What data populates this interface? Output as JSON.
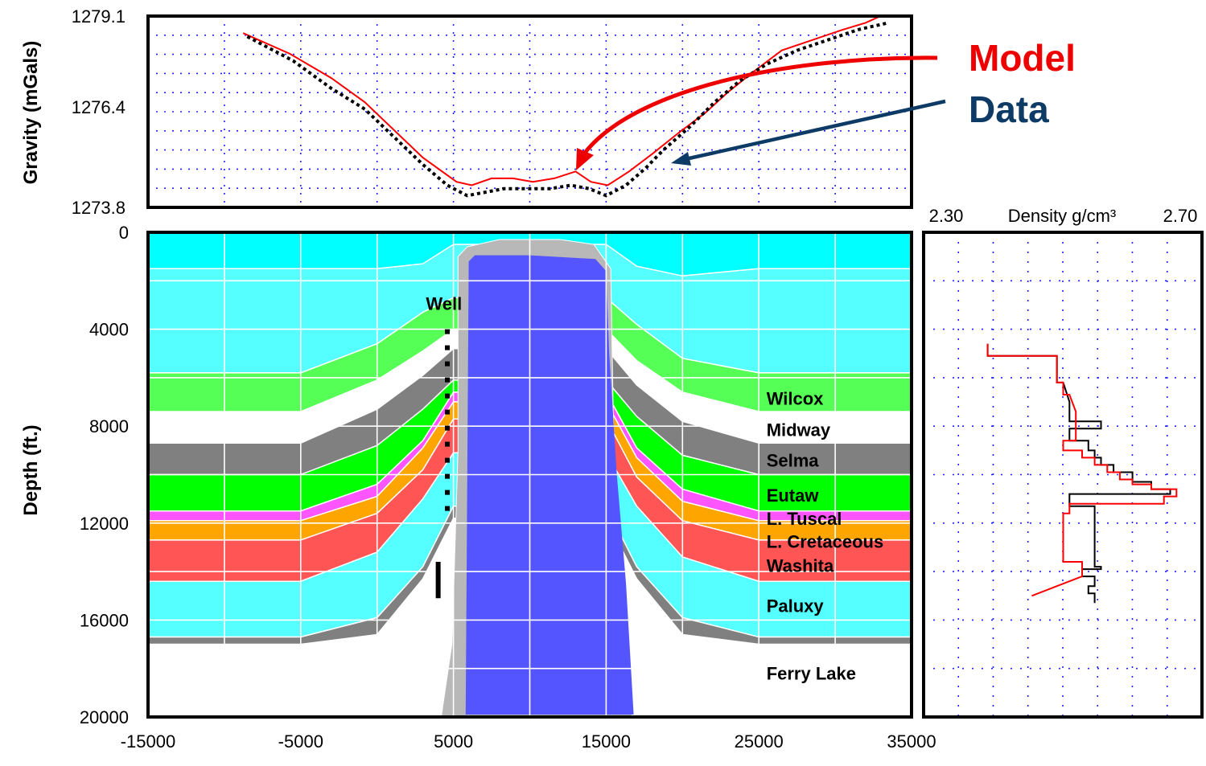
{
  "chart_data": [
    {
      "type": "line",
      "name": "gravity-profile",
      "ylabel": "Gravity (mGals)",
      "xlim": [
        -15000,
        35000
      ],
      "ylim": [
        1273.8,
        1279.1
      ],
      "yticks": [
        "1279.1",
        "1276.4",
        "1273.8"
      ],
      "grid": true,
      "legend": "right, with arrows",
      "series": [
        {
          "name": "Model",
          "color": "#ff0000",
          "style": "solid",
          "x": [
            -8770,
            -5700,
            -3000,
            -800,
            1100,
            3000,
            5200,
            6200,
            7500,
            8900,
            10200,
            11600,
            13000,
            14000,
            15100,
            16500,
            18000,
            19700,
            21500,
            23000,
            24700,
            26500,
            28500,
            30500,
            32000,
            33000
          ],
          "y": [
            1278.7,
            1278.1,
            1277.4,
            1276.7,
            1275.9,
            1275.1,
            1274.4,
            1274.3,
            1274.5,
            1274.5,
            1274.4,
            1274.5,
            1274.7,
            1274.4,
            1274.3,
            1274.7,
            1275.2,
            1275.8,
            1276.4,
            1277.0,
            1277.6,
            1278.2,
            1278.5,
            1278.8,
            1279.0,
            1279.2
          ]
        },
        {
          "name": "Data",
          "color": "#000000",
          "style": "dotted",
          "x": [
            -8500,
            -5500,
            -3000,
            -800,
            1100,
            3000,
            4600,
            5900,
            7100,
            8300,
            9800,
            11300,
            12700,
            13900,
            15000,
            16300,
            17600,
            18700,
            20500,
            22100,
            23700,
            25500,
            27500,
            29500,
            31500,
            33500
          ],
          "y": [
            1278.6,
            1277.9,
            1277.1,
            1276.5,
            1275.7,
            1274.9,
            1274.3,
            1274.0,
            1274.1,
            1274.2,
            1274.2,
            1274.2,
            1274.3,
            1274.2,
            1274.0,
            1274.3,
            1274.8,
            1275.3,
            1276.0,
            1276.7,
            1277.3,
            1277.8,
            1278.2,
            1278.5,
            1278.8,
            1279.0
          ]
        }
      ]
    },
    {
      "type": "area",
      "name": "depth-cross-section",
      "ylabel": "Depth (ft.)",
      "xlim": [
        -15000,
        35000
      ],
      "ylim": [
        0,
        20000
      ],
      "xticks": [
        "-15000",
        "-5000",
        "5000",
        "15000",
        "25000",
        "35000"
      ],
      "yticks": [
        "0",
        "4000",
        "8000",
        "12000",
        "16000",
        "20000"
      ],
      "grid": true,
      "well_label": "Well",
      "layer_labels": [
        {
          "text": "Wilcox",
          "x": 25500,
          "y": 6850
        },
        {
          "text": "Midway",
          "x": 25500,
          "y": 8150
        },
        {
          "text": "Selma",
          "x": 25500,
          "y": 9400
        },
        {
          "text": "Eutaw",
          "x": 25500,
          "y": 10850
        },
        {
          "text": "L. Tuscal",
          "x": 25500,
          "y": 11800
        },
        {
          "text": "L. Cretaceous",
          "x": 25500,
          "y": 12750
        },
        {
          "text": "Washita",
          "x": 25500,
          "y": 13750
        },
        {
          "text": "Paluxy",
          "x": 25500,
          "y": 15400
        },
        {
          "text": "Ferry Lake",
          "x": 25500,
          "y": 18200
        }
      ],
      "x": [
        -15000,
        -5000,
        0,
        3000,
        5000,
        15000,
        17000,
        20000,
        25000,
        35000
      ],
      "boundaries": [
        [
          0,
          0,
          0,
          0,
          0,
          0,
          0,
          0,
          0,
          0
        ],
        [
          1500,
          1500,
          1500,
          1300,
          500,
          500,
          1400,
          1800,
          1500,
          1500
        ],
        [
          5800,
          5800,
          4600,
          3300,
          2700,
          2700,
          3800,
          5200,
          5800,
          5800
        ],
        [
          7400,
          7400,
          6100,
          4900,
          4000,
          4000,
          5300,
          6600,
          7400,
          7400
        ],
        [
          8700,
          8700,
          7300,
          5900,
          4800,
          4800,
          6300,
          7800,
          8700,
          8700
        ],
        [
          10000,
          10000,
          8800,
          7300,
          6100,
          6100,
          7600,
          9200,
          10000,
          10000
        ],
        [
          11500,
          11500,
          10400,
          8600,
          6600,
          6600,
          8900,
          10600,
          11500,
          11500
        ],
        [
          11900,
          11900,
          10900,
          8900,
          7000,
          7000,
          9300,
          11100,
          11900,
          11900
        ],
        [
          12700,
          12700,
          11600,
          9800,
          7700,
          7700,
          10100,
          11900,
          12700,
          12700
        ],
        [
          14400,
          14400,
          13200,
          11000,
          9100,
          9100,
          11300,
          13400,
          14400,
          14400
        ],
        [
          16700,
          16700,
          15900,
          13800,
          11300,
          11300,
          13800,
          15900,
          16700,
          16700
        ],
        [
          17000,
          17000,
          16600,
          14300,
          11800,
          11800,
          14300,
          16600,
          17000,
          17000
        ]
      ],
      "layer_colors": [
        "#00ffff",
        "#55ffff",
        "#55ff55",
        "#ffffff",
        "#808080",
        "#00ff00",
        "#ff55ff",
        "#ffa500",
        "#ff5555",
        "#55ffff",
        "#808080"
      ],
      "salt_color": "#5555ff",
      "salt_outline": [
        [
          5800,
          19900
        ],
        [
          6000,
          1200
        ],
        [
          6400,
          950
        ],
        [
          10000,
          950
        ],
        [
          14300,
          1100
        ],
        [
          15000,
          1600
        ],
        [
          15200,
          5000
        ],
        [
          15700,
          10000
        ],
        [
          16300,
          14500
        ],
        [
          16800,
          19900
        ]
      ],
      "salt_halo": [
        [
          4200,
          20000
        ],
        [
          4900,
          17000
        ],
        [
          5300,
          9000
        ],
        [
          5300,
          1000
        ],
        [
          5900,
          600
        ],
        [
          8000,
          300
        ],
        [
          12000,
          300
        ],
        [
          14200,
          500
        ],
        [
          15300,
          1500
        ],
        [
          15700,
          16000
        ],
        [
          16700,
          20000
        ]
      ],
      "well_depth_ranges": [
        [
          4000,
          11500
        ],
        [
          13600,
          15100
        ]
      ]
    },
    {
      "type": "line",
      "name": "density-log",
      "title": "Density g/cm³",
      "xlim": [
        2.3,
        2.7
      ],
      "xticks": [
        "2.30",
        "2.70"
      ],
      "ylim": [
        0,
        20000
      ],
      "grid": true,
      "series": [
        {
          "color": "#000000",
          "x": [
            2.38,
            2.38,
            2.49,
            2.49,
            2.5,
            2.51,
            2.51,
            2.56,
            2.56,
            2.51,
            2.51,
            2.54,
            2.54,
            2.55,
            2.55,
            2.56,
            2.56,
            2.58,
            2.58,
            2.61,
            2.61,
            2.64,
            2.64,
            2.67,
            2.67,
            2.51,
            2.51,
            2.55,
            2.55,
            2.56,
            2.56,
            2.53,
            2.53,
            2.55,
            2.55,
            2.54,
            2.54,
            2.55,
            2.55
          ],
          "y": [
            4600,
            5100,
            5100,
            6200,
            6200,
            7000,
            7800,
            7800,
            8100,
            8100,
            8600,
            8600,
            9000,
            9000,
            9300,
            9300,
            9600,
            9600,
            9900,
            9900,
            10300,
            10300,
            10600,
            10600,
            10800,
            10800,
            11300,
            11300,
            13800,
            13800,
            13900,
            13900,
            14200,
            14200,
            14600,
            14600,
            14900,
            14900,
            15300
          ]
        },
        {
          "color": "#ff0000",
          "x": [
            2.38,
            2.38,
            2.49,
            2.49,
            2.5,
            2.5,
            2.51,
            2.52,
            2.52,
            2.5,
            2.5,
            2.53,
            2.53,
            2.55,
            2.55,
            2.57,
            2.57,
            2.59,
            2.59,
            2.61,
            2.61,
            2.64,
            2.64,
            2.68,
            2.68,
            2.66,
            2.66,
            2.51,
            2.51,
            2.5,
            2.5,
            2.53,
            2.53,
            2.45
          ],
          "y": [
            4600,
            5100,
            5100,
            6200,
            6200,
            6700,
            6700,
            7400,
            8600,
            8600,
            9000,
            9000,
            9300,
            9300,
            9600,
            9600,
            9900,
            9900,
            10200,
            10200,
            10400,
            10400,
            10600,
            10600,
            10900,
            10900,
            11200,
            11200,
            11600,
            11600,
            13600,
            13600,
            14200,
            15000
          ]
        }
      ]
    }
  ],
  "legend": {
    "model_label": "Model",
    "model_color": "#ee0000",
    "data_label": "Data",
    "data_color": "#0e3a66"
  }
}
